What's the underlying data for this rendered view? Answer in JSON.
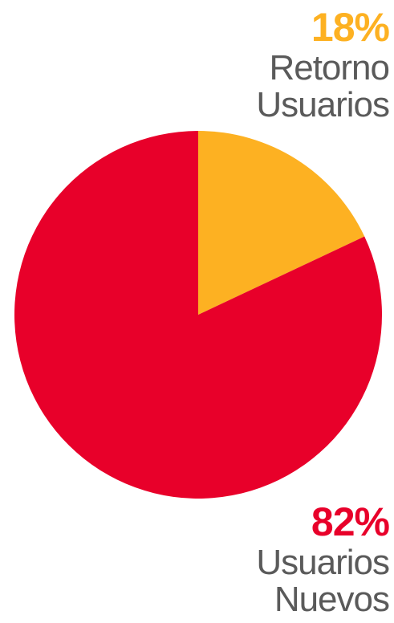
{
  "chart_data": {
    "type": "pie",
    "values": [
      18,
      82
    ],
    "slices": [
      {
        "value": 18,
        "percent_label": "18%",
        "name_lines": [
          "Retorno",
          "Usuarios"
        ],
        "color": "#fdb122"
      },
      {
        "value": 82,
        "percent_label": "82%",
        "name_lines": [
          "Usuarios",
          "Nuevos"
        ],
        "color": "#e8002a"
      }
    ],
    "text_color": "#5a5a5a"
  }
}
